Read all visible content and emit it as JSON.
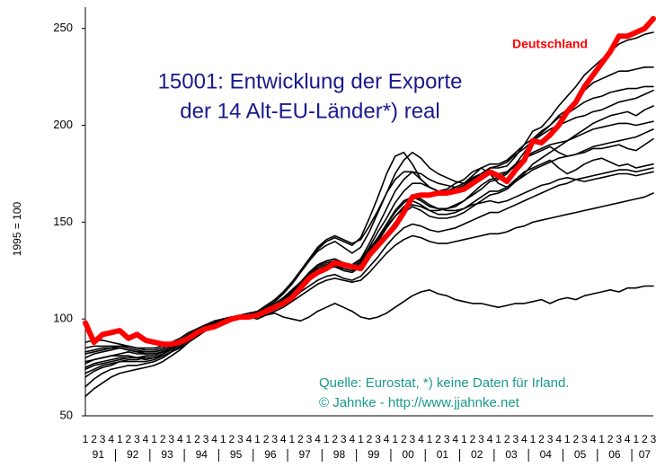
{
  "chart_data": {
    "type": "line",
    "title_lines": [
      "15001: Entwicklung der Exporte",
      "der 14 Alt-EU-Länder*) real"
    ],
    "y_label": "1995 = 100",
    "notes": [
      "Quelle: Eurostat, *) keine Daten für Irland.",
      "© Jahnke - http://www.jjahnke.net"
    ],
    "categories": [
      "1",
      "2",
      "3",
      "4",
      "1",
      "2",
      "3",
      "4",
      "1",
      "2",
      "3",
      "4",
      "1",
      "2",
      "3",
      "4",
      "1",
      "2",
      "3",
      "4",
      "1",
      "2",
      "3",
      "4",
      "1",
      "2",
      "3",
      "4",
      "1",
      "2",
      "3",
      "4",
      "1",
      "2",
      "3",
      "4",
      "1",
      "2",
      "3",
      "4",
      "1",
      "2",
      "3",
      "4",
      "1",
      "2",
      "3",
      "4",
      "1",
      "2",
      "3",
      "4",
      "1",
      "2",
      "3",
      "4",
      "1",
      "2",
      "3",
      "4",
      "1",
      "2",
      "3",
      "4",
      "1",
      "2",
      "3"
    ],
    "year_labels": [
      "91",
      "92",
      "93",
      "94",
      "95",
      "96",
      "97",
      "98",
      "99",
      "00",
      "01",
      "02",
      "03",
      "04",
      "05",
      "06",
      "07"
    ],
    "ylim": [
      50,
      261
    ],
    "yticks": [
      50,
      100,
      150,
      200,
      250
    ],
    "grid": false,
    "series": [
      {
        "color": "#000000",
        "values": [
          80,
          82,
          83,
          84,
          85,
          84,
          83,
          83,
          83,
          84,
          86,
          89,
          92,
          95,
          97,
          99,
          100,
          101,
          101,
          101,
          102,
          104,
          107,
          110,
          114,
          119,
          124,
          128,
          130,
          131,
          128,
          127,
          130,
          137,
          145,
          152,
          160,
          166,
          170,
          170,
          168,
          166,
          166,
          167,
          169,
          172,
          175,
          178,
          178,
          179,
          184,
          190,
          197,
          199,
          204,
          210,
          215,
          220,
          226,
          230,
          234,
          238,
          242,
          244,
          245,
          247,
          248
        ]
      },
      {
        "color": "#000000",
        "values": [
          88,
          89,
          89,
          88,
          87,
          86,
          85,
          85,
          85,
          86,
          88,
          90,
          93,
          95,
          97,
          98,
          100,
          100,
          101,
          102,
          103,
          105,
          107,
          110,
          114,
          118,
          121,
          124,
          126,
          127,
          126,
          125,
          128,
          134,
          141,
          149,
          156,
          161,
          163,
          161,
          158,
          157,
          157,
          158,
          161,
          164,
          167,
          171,
          172,
          175,
          180,
          186,
          192,
          196,
          200,
          205,
          208,
          213,
          218,
          222,
          224,
          226,
          228,
          228,
          229,
          230,
          230
        ]
      },
      {
        "color": "#000000",
        "values": [
          70,
          73,
          75,
          76,
          78,
          79,
          79,
          80,
          80,
          82,
          85,
          88,
          91,
          94,
          96,
          98,
          100,
          101,
          101,
          101,
          102,
          103,
          106,
          109,
          113,
          118,
          123,
          127,
          130,
          131,
          129,
          128,
          131,
          139,
          148,
          157,
          166,
          172,
          176,
          175,
          172,
          170,
          169,
          168,
          170,
          174,
          178,
          180,
          180,
          182,
          186,
          190,
          193,
          197,
          200,
          204,
          206,
          209,
          212,
          214,
          215,
          217,
          218,
          219,
          219,
          220,
          220
        ]
      },
      {
        "color": "#000000",
        "values": [
          74,
          76,
          77,
          78,
          79,
          80,
          80,
          79,
          80,
          82,
          84,
          87,
          90,
          93,
          96,
          98,
          100,
          100,
          101,
          102,
          103,
          106,
          109,
          113,
          118,
          124,
          130,
          135,
          138,
          140,
          137,
          134,
          137,
          145,
          155,
          165,
          175,
          182,
          186,
          183,
          178,
          175,
          173,
          171,
          170,
          172,
          175,
          178,
          179,
          181,
          185,
          188,
          192,
          195,
          198,
          200,
          202,
          204,
          205,
          207,
          208,
          210,
          212,
          213,
          214,
          216,
          218
        ]
      },
      {
        "color": "#000000",
        "values": [
          77,
          79,
          80,
          81,
          82,
          83,
          82,
          82,
          82,
          83,
          85,
          88,
          91,
          94,
          96,
          98,
          100,
          100,
          101,
          102,
          103,
          105,
          108,
          111,
          115,
          119,
          122,
          125,
          127,
          128,
          126,
          125,
          127,
          132,
          138,
          144,
          150,
          155,
          158,
          156,
          153,
          152,
          152,
          153,
          155,
          158,
          161,
          164,
          165,
          167,
          171,
          175,
          180,
          183,
          186,
          189,
          192,
          195,
          198,
          201,
          203,
          205,
          206,
          207,
          205,
          208,
          210
        ]
      },
      {
        "color": "#000000",
        "values": [
          65,
          69,
          72,
          74,
          75,
          76,
          76,
          77,
          78,
          80,
          83,
          86,
          89,
          92,
          95,
          97,
          100,
          101,
          101,
          101,
          102,
          103,
          105,
          108,
          112,
          117,
          121,
          124,
          126,
          127,
          125,
          124,
          127,
          133,
          140,
          147,
          153,
          158,
          161,
          159,
          156,
          154,
          154,
          155,
          157,
          160,
          163,
          166,
          166,
          168,
          171,
          174,
          177,
          179,
          181,
          183,
          184,
          185,
          186,
          188,
          188,
          189,
          190,
          188,
          187,
          190,
          193
        ]
      },
      {
        "color": "#000000",
        "values": [
          83,
          84,
          85,
          85,
          85,
          84,
          83,
          82,
          82,
          83,
          85,
          88,
          91,
          94,
          96,
          98,
          100,
          101,
          102,
          103,
          104,
          106,
          109,
          113,
          118,
          124,
          130,
          136,
          140,
          142,
          140,
          138,
          142,
          152,
          163,
          175,
          184,
          186,
          180,
          172,
          168,
          166,
          167,
          170,
          172,
          176,
          178,
          175,
          170,
          168,
          172,
          176,
          178,
          180,
          182,
          178,
          175,
          177,
          180,
          182,
          183,
          181,
          179,
          180,
          178,
          179,
          180
        ]
      },
      {
        "color": "#000000",
        "values": [
          60,
          64,
          67,
          70,
          72,
          73,
          74,
          75,
          76,
          78,
          81,
          84,
          88,
          91,
          94,
          97,
          100,
          100,
          100,
          101,
          101,
          103,
          105,
          107,
          110,
          114,
          117,
          120,
          122,
          123,
          121,
          120,
          122,
          127,
          132,
          138,
          143,
          147,
          149,
          148,
          146,
          145,
          146,
          147,
          149,
          151,
          153,
          155,
          155,
          157,
          159,
          161,
          163,
          165,
          167,
          169,
          170,
          172,
          173,
          174,
          175,
          176,
          177,
          177,
          176,
          177,
          178
        ]
      },
      {
        "color": "#000000",
        "values": [
          72,
          74,
          76,
          77,
          78,
          78,
          78,
          78,
          79,
          81,
          83,
          86,
          89,
          92,
          95,
          98,
          100,
          101,
          101,
          102,
          103,
          104,
          106,
          109,
          113,
          117,
          121,
          125,
          128,
          130,
          128,
          126,
          129,
          135,
          142,
          149,
          155,
          160,
          163,
          162,
          159,
          157,
          156,
          156,
          157,
          159,
          160,
          161,
          160,
          161,
          163,
          165,
          167,
          169,
          170,
          172,
          173,
          172,
          171,
          172,
          173,
          174,
          175,
          175,
          174,
          175,
          176
        ]
      },
      {
        "color": "#000000",
        "values": [
          78,
          79,
          80,
          81,
          81,
          81,
          80,
          80,
          80,
          81,
          83,
          85,
          88,
          91,
          94,
          97,
          100,
          100,
          101,
          101,
          101,
          102,
          104,
          106,
          109,
          112,
          115,
          118,
          120,
          121,
          120,
          119,
          120,
          124,
          129,
          134,
          138,
          141,
          143,
          142,
          140,
          139,
          139,
          140,
          141,
          142,
          143,
          144,
          144,
          145,
          147,
          148,
          150,
          151,
          152,
          153,
          154,
          155,
          156,
          157,
          158,
          159,
          160,
          161,
          162,
          163,
          165
        ]
      },
      {
        "color": "#000000",
        "values": [
          85,
          86,
          86,
          86,
          86,
          85,
          84,
          83,
          83,
          84,
          86,
          88,
          91,
          94,
          96,
          98,
          100,
          101,
          101,
          102,
          104,
          107,
          110,
          114,
          119,
          125,
          131,
          137,
          141,
          143,
          141,
          139,
          141,
          148,
          156,
          165,
          172,
          176,
          176,
          172,
          168,
          166,
          166,
          168,
          170,
          173,
          175,
          176,
          175,
          176,
          179,
          183,
          185,
          187,
          189,
          186,
          184,
          185,
          187,
          189,
          190,
          191,
          192,
          193,
          194,
          196,
          198
        ]
      },
      {
        "color": "#000000",
        "values": [
          75,
          77,
          78,
          79,
          80,
          80,
          80,
          81,
          81,
          83,
          85,
          88,
          91,
          94,
          96,
          98,
          100,
          100,
          101,
          102,
          103,
          104,
          107,
          110,
          114,
          118,
          122,
          126,
          129,
          130,
          128,
          127,
          130,
          136,
          142,
          148,
          153,
          157,
          159,
          158,
          156,
          156,
          157,
          159,
          161,
          165,
          169,
          172,
          173,
          176,
          180,
          183,
          186,
          188,
          190,
          191,
          192,
          194,
          196,
          198,
          199,
          200,
          201,
          201,
          200,
          201,
          202
        ]
      },
      {
        "color": "#000000",
        "values": [
          82,
          83,
          84,
          85,
          86,
          86,
          85,
          84,
          84,
          85,
          87,
          89,
          91,
          93,
          95,
          97,
          98,
          100,
          101,
          101,
          100,
          102,
          103,
          101,
          100,
          99,
          101,
          104,
          106,
          108,
          106,
          104,
          101,
          100,
          101,
          103,
          106,
          109,
          112,
          114,
          115,
          113,
          112,
          110,
          109,
          108,
          108,
          107,
          106,
          107,
          108,
          108,
          109,
          110,
          108,
          110,
          111,
          110,
          112,
          113,
          114,
          115,
          114,
          116,
          116,
          117,
          117
        ]
      },
      {
        "name": "Deutschland",
        "color": "#ff0000",
        "values": [
          98,
          88,
          92,
          93,
          94,
          90,
          92,
          89,
          88,
          87,
          87,
          88,
          90,
          93,
          95,
          96,
          98,
          100,
          101,
          101,
          102,
          104,
          106,
          108,
          111,
          116,
          121,
          124,
          126,
          129,
          128,
          127,
          126,
          133,
          138,
          143,
          148,
          155,
          163,
          164,
          164,
          165,
          165,
          166,
          167,
          170,
          173,
          176,
          174,
          171,
          177,
          182,
          192,
          191,
          195,
          200,
          207,
          212,
          220,
          226,
          232,
          238,
          246,
          246,
          248,
          250,
          255
        ]
      }
    ]
  }
}
